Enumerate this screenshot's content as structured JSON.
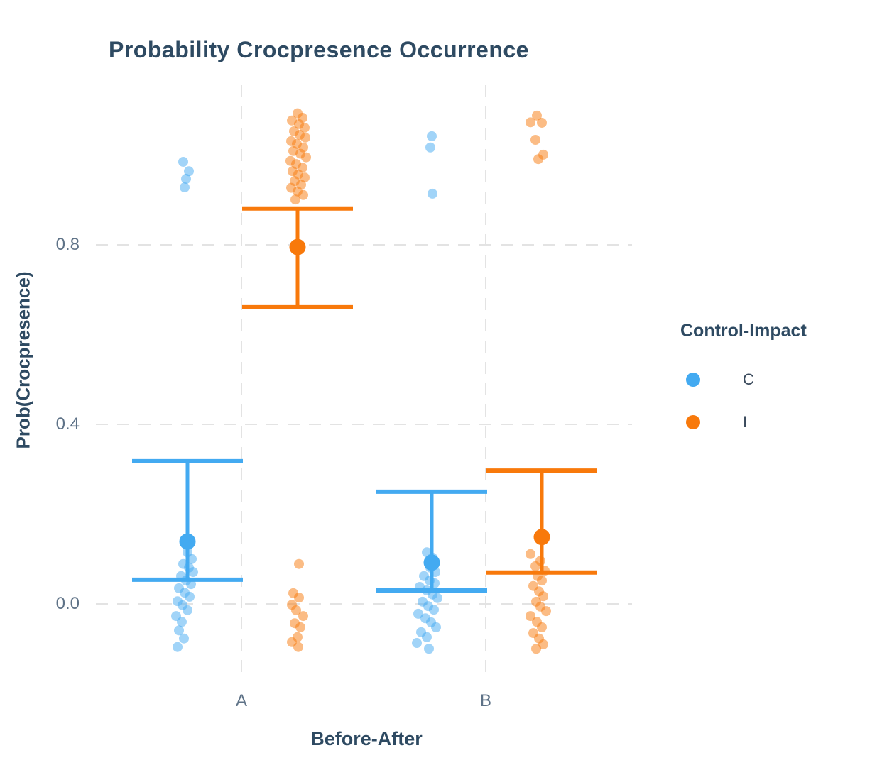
{
  "chart_data": {
    "type": "scatter",
    "title": "Probability Crocpresence Occurrence",
    "xlabel": "Before-After",
    "ylabel": "Prob(Crocpresence)",
    "categories": [
      "A",
      "B"
    ],
    "yticks": [
      {
        "value": 0.0,
        "label": "0.0"
      },
      {
        "value": 0.4,
        "label": "0.4"
      },
      {
        "value": 0.8,
        "label": "0.8"
      }
    ],
    "ylim": [
      -0.16,
      1.16
    ],
    "grid": {
      "horizontal": "dashed",
      "vertical": "dashed",
      "color": "#e3e3e3"
    },
    "legend": {
      "title": "Control-Impact",
      "position": "right",
      "items": [
        {
          "label": "C",
          "color": "#43aaf1"
        },
        {
          "label": "I",
          "color": "#f8790b"
        }
      ]
    },
    "text_colors": {
      "title": "#2e4a62",
      "axis_titles": "#2e4a62",
      "tick_labels": "#5e7287"
    },
    "series": [
      {
        "name": "C",
        "color": "#43aaf1",
        "summary": {
          "A": {
            "mean": 0.139,
            "lower": 0.054,
            "upper": 0.318
          },
          "B": {
            "mean": 0.092,
            "lower": 0.03,
            "upper": 0.25
          }
        },
        "points": {
          "A": [
            [
              -6,
              0.985
            ],
            [
              2,
              0.964
            ],
            [
              -2,
              0.947
            ],
            [
              -4,
              0.928
            ],
            [
              0,
              0.115
            ],
            [
              6,
              0.1
            ],
            [
              -6,
              0.089
            ],
            [
              2,
              0.081
            ],
            [
              8,
              0.071
            ],
            [
              -9,
              0.062
            ],
            [
              -2,
              0.052
            ],
            [
              5,
              0.044
            ],
            [
              -12,
              0.035
            ],
            [
              -4,
              0.025
            ],
            [
              3,
              0.016
            ],
            [
              -14,
              0.006
            ],
            [
              -7,
              -0.003
            ],
            [
              0,
              -0.014
            ],
            [
              -16,
              -0.027
            ],
            [
              -8,
              -0.04
            ],
            [
              -12,
              -0.059
            ],
            [
              -5,
              -0.077
            ],
            [
              -14,
              -0.096
            ]
          ],
          "B": [
            [
              0,
              1.042
            ],
            [
              -2,
              1.017
            ],
            [
              1,
              0.914
            ],
            [
              -7,
              0.115
            ],
            [
              1,
              0.103
            ],
            [
              -2,
              0.081
            ],
            [
              5,
              0.071
            ],
            [
              -11,
              0.062
            ],
            [
              -3,
              0.052
            ],
            [
              4,
              0.046
            ],
            [
              -17,
              0.038
            ],
            [
              -7,
              0.03
            ],
            [
              1,
              0.021
            ],
            [
              8,
              0.013
            ],
            [
              -13,
              0.005
            ],
            [
              -5,
              -0.005
            ],
            [
              3,
              -0.013
            ],
            [
              -19,
              -0.022
            ],
            [
              -9,
              -0.032
            ],
            [
              -1,
              -0.041
            ],
            [
              6,
              -0.052
            ],
            [
              -15,
              -0.063
            ],
            [
              -7,
              -0.074
            ],
            [
              -21,
              -0.087
            ],
            [
              -4,
              -0.1
            ]
          ]
        }
      },
      {
        "name": "I",
        "color": "#f8790b",
        "summary": {
          "A": {
            "mean": 0.795,
            "lower": 0.661,
            "upper": 0.881
          },
          "B": {
            "mean": 0.149,
            "lower": 0.07,
            "upper": 0.297
          }
        },
        "points": {
          "A": [
            [
              0,
              1.093
            ],
            [
              7,
              1.083
            ],
            [
              -8,
              1.077
            ],
            [
              2,
              1.069
            ],
            [
              10,
              1.061
            ],
            [
              -5,
              1.053
            ],
            [
              3,
              1.045
            ],
            [
              11,
              1.039
            ],
            [
              -9,
              1.031
            ],
            [
              -1,
              1.025
            ],
            [
              8,
              1.017
            ],
            [
              -6,
              1.009
            ],
            [
              4,
              1.003
            ],
            [
              12,
              0.995
            ],
            [
              -10,
              0.987
            ],
            [
              -2,
              0.98
            ],
            [
              7,
              0.972
            ],
            [
              -7,
              0.964
            ],
            [
              1,
              0.957
            ],
            [
              10,
              0.95
            ],
            [
              -4,
              0.942
            ],
            [
              5,
              0.934
            ],
            [
              -9,
              0.927
            ],
            [
              0,
              0.919
            ],
            [
              8,
              0.911
            ],
            [
              -3,
              0.901
            ],
            [
              2,
              0.089
            ],
            [
              -6,
              0.024
            ],
            [
              2,
              0.014
            ],
            [
              -8,
              -0.002
            ],
            [
              -2,
              -0.014
            ],
            [
              8,
              -0.027
            ],
            [
              -4,
              -0.043
            ],
            [
              4,
              -0.052
            ],
            [
              0,
              -0.074
            ],
            [
              -8,
              -0.085
            ],
            [
              1,
              -0.096
            ]
          ],
          "B": [
            [
              -7,
              1.088
            ],
            [
              -16,
              1.073
            ],
            [
              0,
              1.072
            ],
            [
              -9,
              1.034
            ],
            [
              2,
              1.001
            ],
            [
              -5,
              0.991
            ],
            [
              -16,
              0.111
            ],
            [
              -2,
              0.096
            ],
            [
              -9,
              0.084
            ],
            [
              4,
              0.074
            ],
            [
              -6,
              0.062
            ],
            [
              0,
              0.052
            ],
            [
              -12,
              0.04
            ],
            [
              -4,
              0.028
            ],
            [
              2,
              0.017
            ],
            [
              -8,
              0.005
            ],
            [
              -2,
              -0.006
            ],
            [
              6,
              -0.016
            ],
            [
              -16,
              -0.027
            ],
            [
              -7,
              -0.04
            ],
            [
              0,
              -0.052
            ],
            [
              -12,
              -0.065
            ],
            [
              -4,
              -0.077
            ],
            [
              2,
              -0.09
            ],
            [
              -8,
              -0.1
            ]
          ]
        }
      }
    ]
  }
}
